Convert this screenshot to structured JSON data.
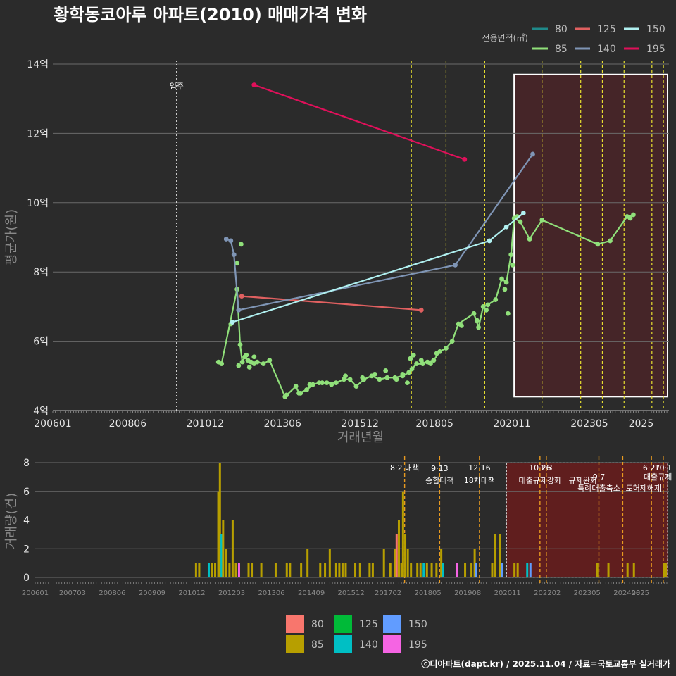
{
  "chart_title": "황학동코아루 아파트(2010) 매매가격 변화",
  "credit": "ⓒ디아파트(dapt.kr) / 2025.11.04 / 자료=국토교통부 실거래가",
  "colors": {
    "bg": "#2b2b2b",
    "grid": "#6b6b6b",
    "s80": "#1f8a8a",
    "s85": "#90e07a",
    "s125": "#e06060",
    "s140": "#7f95b5",
    "s150": "#b0f0f0",
    "s195": "#e0105a",
    "b80": "#f8766d",
    "b85": "#b79f00",
    "b125": "#00ba38",
    "b140": "#00bfc4",
    "b150": "#619cff",
    "b195": "#f564e3",
    "vline": "#e8e030",
    "vline2": "#e89a20",
    "box_fill": "#4a2428",
    "box_fill2": "#6a1c1c"
  },
  "chart_data": [
    {
      "type": "line",
      "title": "황학동코아루 아파트(2010) 매매가격 변화",
      "xlabel": "거래년월",
      "ylabel": "평균가(원)",
      "x_range": [
        2006.0,
        2025.9
      ],
      "ylim": [
        4,
        14
      ],
      "y_ticks": [
        4,
        6,
        8,
        10,
        12,
        14
      ],
      "y_tick_labels": [
        "4억",
        "6억",
        "8억",
        "10억",
        "12억",
        "14억"
      ],
      "x_ticks": [
        2006.0,
        2008.42,
        2010.92,
        2013.42,
        2015.92,
        2018.33,
        2020.83,
        2023.33,
        2025.0
      ],
      "x_tick_labels": [
        "200601",
        "200806",
        "201012",
        "201306",
        "201512",
        "201805",
        "202011",
        "202305",
        "2025"
      ],
      "legend_title": "전용면적(㎡)",
      "occupancy": {
        "x": 2010.0,
        "label": "입주"
      },
      "policy_lines": [
        2017.58,
        2018.7,
        2019.95,
        2021.8,
        2023.05,
        2023.75,
        2024.45,
        2025.35,
        2025.72
      ],
      "highlight_range": [
        2020.9,
        2025.9
      ],
      "highlight_y": [
        4.4,
        13.7
      ],
      "series": [
        {
          "name": "80",
          "color_key": "s80",
          "points": []
        },
        {
          "name": "85",
          "color_key": "s85",
          "line": [
            [
              2011.35,
              5.4
            ],
            [
              2011.45,
              5.35
            ],
            [
              2011.95,
              7.5
            ],
            [
              2012.05,
              5.9
            ],
            [
              2012.12,
              5.4
            ],
            [
              2012.2,
              5.55
            ],
            [
              2012.3,
              5.45
            ],
            [
              2012.4,
              5.4
            ],
            [
              2012.5,
              5.35
            ],
            [
              2012.6,
              5.4
            ],
            [
              2012.8,
              5.35
            ],
            [
              2013.0,
              5.45
            ],
            [
              2013.5,
              4.4
            ],
            [
              2013.85,
              4.7
            ],
            [
              2013.95,
              4.5
            ],
            [
              2014.2,
              4.6
            ],
            [
              2014.4,
              4.75
            ],
            [
              2014.6,
              4.8
            ],
            [
              2014.85,
              4.8
            ],
            [
              2015.15,
              4.8
            ],
            [
              2015.4,
              4.9
            ],
            [
              2015.6,
              4.9
            ],
            [
              2015.8,
              4.7
            ],
            [
              2016.05,
              4.9
            ],
            [
              2016.3,
              5.0
            ],
            [
              2016.55,
              4.9
            ],
            [
              2016.8,
              4.95
            ],
            [
              2017.05,
              4.95
            ],
            [
              2017.3,
              5.0
            ],
            [
              2017.5,
              5.1
            ],
            [
              2017.6,
              5.2
            ],
            [
              2017.75,
              5.35
            ],
            [
              2017.95,
              5.35
            ],
            [
              2018.1,
              5.4
            ],
            [
              2018.3,
              5.45
            ],
            [
              2018.5,
              5.7
            ],
            [
              2018.7,
              5.8
            ],
            [
              2018.9,
              6.0
            ],
            [
              2019.1,
              6.5
            ],
            [
              2019.6,
              6.8
            ],
            [
              2019.75,
              6.4
            ],
            [
              2019.9,
              7.0
            ],
            [
              2020.05,
              7.05
            ],
            [
              2020.3,
              7.2
            ],
            [
              2020.5,
              7.8
            ],
            [
              2020.65,
              7.7
            ],
            [
              2020.8,
              8.5
            ],
            [
              2020.9,
              9.55
            ],
            [
              2021.1,
              9.45
            ],
            [
              2021.4,
              8.95
            ],
            [
              2021.8,
              9.5
            ],
            [
              2023.6,
              8.8
            ],
            [
              2024.0,
              8.9
            ],
            [
              2024.55,
              9.6
            ],
            [
              2024.75,
              9.65
            ]
          ],
          "extra_points": [
            [
              2011.75,
              6.5
            ],
            [
              2011.95,
              8.25
            ],
            [
              2012.08,
              8.8
            ],
            [
              2012.0,
              5.3
            ],
            [
              2012.25,
              5.6
            ],
            [
              2012.35,
              5.25
            ],
            [
              2012.5,
              5.55
            ],
            [
              2013.55,
              4.45
            ],
            [
              2014.0,
              4.5
            ],
            [
              2014.3,
              4.75
            ],
            [
              2014.7,
              4.8
            ],
            [
              2015.0,
              4.75
            ],
            [
              2015.45,
              5.0
            ],
            [
              2016.0,
              4.95
            ],
            [
              2016.4,
              5.05
            ],
            [
              2016.75,
              5.15
            ],
            [
              2017.1,
              4.9
            ],
            [
              2017.3,
              5.05
            ],
            [
              2017.45,
              4.8
            ],
            [
              2017.55,
              5.5
            ],
            [
              2017.65,
              5.6
            ],
            [
              2017.9,
              5.45
            ],
            [
              2018.2,
              5.35
            ],
            [
              2018.4,
              5.65
            ],
            [
              2019.2,
              6.45
            ],
            [
              2019.7,
              6.6
            ],
            [
              2020.0,
              6.9
            ],
            [
              2020.6,
              7.5
            ],
            [
              2020.7,
              6.8
            ],
            [
              2020.85,
              8.2
            ],
            [
              2021.0,
              9.6
            ],
            [
              2024.65,
              9.55
            ]
          ]
        },
        {
          "name": "125",
          "color_key": "s125",
          "line": [
            [
              2012.1,
              7.3
            ],
            [
              2017.9,
              6.9
            ]
          ]
        },
        {
          "name": "140",
          "color_key": "s140",
          "line": [
            [
              2011.6,
              8.95
            ],
            [
              2011.75,
              8.9
            ],
            [
              2011.85,
              8.5
            ],
            [
              2012.0,
              6.9
            ],
            [
              2019.0,
              8.2
            ],
            [
              2021.5,
              11.4
            ]
          ]
        },
        {
          "name": "150",
          "color_key": "s150",
          "line": [
            [
              2011.8,
              6.55
            ],
            [
              2020.1,
              8.9
            ],
            [
              2020.65,
              9.3
            ],
            [
              2021.2,
              9.7
            ]
          ]
        },
        {
          "name": "195",
          "color_key": "s195",
          "line": [
            [
              2012.5,
              13.4
            ],
            [
              2019.3,
              11.25
            ]
          ]
        }
      ]
    },
    {
      "type": "bar",
      "xlabel": "",
      "ylabel": "거래량(건)",
      "x_range": [
        2006.0,
        2025.9
      ],
      "ylim": [
        0,
        8
      ],
      "y_ticks": [
        0,
        2,
        4,
        6,
        8
      ],
      "y_tick_labels": [
        "0",
        "2",
        "4",
        "6",
        "8"
      ],
      "x_tick_labels": [
        "200601",
        "200703",
        "200806",
        "200909",
        "201012",
        "201203",
        "201306",
        "201409",
        "201512",
        "201702",
        "201805",
        "201908",
        "202011",
        "202202",
        "202305",
        "202408",
        "2025"
      ],
      "x_ticks": [
        2006.0,
        2007.17,
        2008.42,
        2009.67,
        2010.92,
        2012.17,
        2013.42,
        2014.67,
        2015.92,
        2017.08,
        2018.33,
        2019.58,
        2020.83,
        2022.08,
        2023.33,
        2024.58,
        2025.0
      ],
      "legend": [
        "80",
        "85",
        "125",
        "140",
        "150",
        "195"
      ],
      "policy_lines": [
        2017.6,
        2018.7,
        2019.95,
        2021.85,
        2022.05,
        2023.7,
        2024.45,
        2025.35,
        2025.72
      ],
      "highlight_range": [
        2020.8,
        2025.9
      ],
      "annotations": [
        {
          "x": 2017.6,
          "row": 0,
          "text": "8·2 대책"
        },
        {
          "x": 2018.7,
          "row": -1,
          "text": "9·13"
        },
        {
          "x": 2018.7,
          "row": 1,
          "text": "종합대책"
        },
        {
          "x": 2019.95,
          "row": 0,
          "text": "12·16"
        },
        {
          "x": 2019.95,
          "row": 1,
          "text": "18차대책"
        },
        {
          "x": 2021.85,
          "row": 0,
          "text": "10·26"
        },
        {
          "x": 2021.85,
          "row": 1,
          "text": "대출규제강화"
        },
        {
          "x": 2022.05,
          "row": 0,
          "text": "1·3"
        },
        {
          "x": 2023.2,
          "row": 1,
          "text": "규제완화"
        },
        {
          "x": 2023.7,
          "row": 2,
          "text": "9·7"
        },
        {
          "x": 2023.7,
          "row": 3,
          "text": "특례대출축소"
        },
        {
          "x": 2025.35,
          "row": 0,
          "text": "6·27"
        },
        {
          "x": 2025.72,
          "row": 0,
          "text": "10·1"
        },
        {
          "x": 2025.1,
          "row": 3,
          "text": "토허제해제"
        },
        {
          "x": 2025.55,
          "row": 2,
          "text": "대출규제"
        }
      ],
      "bars": [
        {
          "x": 2011.05,
          "series": "85",
          "value": 1
        },
        {
          "x": 2011.15,
          "series": "85",
          "value": 1
        },
        {
          "x": 2011.45,
          "series": "140",
          "value": 1
        },
        {
          "x": 2011.55,
          "series": "85",
          "value": 1
        },
        {
          "x": 2011.65,
          "series": "85",
          "value": 1
        },
        {
          "x": 2011.75,
          "series": "85",
          "value": 6
        },
        {
          "x": 2011.8,
          "series": "85",
          "value": 8
        },
        {
          "x": 2011.85,
          "series": "140",
          "value": 3
        },
        {
          "x": 2011.9,
          "series": "85",
          "value": 4
        },
        {
          "x": 2012.0,
          "series": "85",
          "value": 2
        },
        {
          "x": 2012.1,
          "series": "85",
          "value": 1
        },
        {
          "x": 2012.2,
          "series": "85",
          "value": 4
        },
        {
          "x": 2012.3,
          "series": "85",
          "value": 1
        },
        {
          "x": 2012.4,
          "series": "195",
          "value": 1
        },
        {
          "x": 2012.7,
          "series": "85",
          "value": 1
        },
        {
          "x": 2012.8,
          "series": "85",
          "value": 1
        },
        {
          "x": 2013.1,
          "series": "85",
          "value": 1
        },
        {
          "x": 2013.55,
          "series": "85",
          "value": 1
        },
        {
          "x": 2013.9,
          "series": "85",
          "value": 1
        },
        {
          "x": 2014.0,
          "series": "85",
          "value": 1
        },
        {
          "x": 2014.35,
          "series": "85",
          "value": 1
        },
        {
          "x": 2014.55,
          "series": "85",
          "value": 2
        },
        {
          "x": 2014.95,
          "series": "85",
          "value": 1
        },
        {
          "x": 2015.1,
          "series": "85",
          "value": 1
        },
        {
          "x": 2015.25,
          "series": "85",
          "value": 2
        },
        {
          "x": 2015.45,
          "series": "85",
          "value": 1
        },
        {
          "x": 2015.55,
          "series": "85",
          "value": 1
        },
        {
          "x": 2015.65,
          "series": "85",
          "value": 1
        },
        {
          "x": 2015.75,
          "series": "85",
          "value": 1
        },
        {
          "x": 2016.05,
          "series": "85",
          "value": 1
        },
        {
          "x": 2016.2,
          "series": "85",
          "value": 1
        },
        {
          "x": 2016.5,
          "series": "85",
          "value": 1
        },
        {
          "x": 2016.6,
          "series": "85",
          "value": 1
        },
        {
          "x": 2016.95,
          "series": "85",
          "value": 2
        },
        {
          "x": 2017.15,
          "series": "85",
          "value": 1
        },
        {
          "x": 2017.3,
          "series": "85",
          "value": 2
        },
        {
          "x": 2017.35,
          "series": "80",
          "value": 3
        },
        {
          "x": 2017.42,
          "series": "85",
          "value": 4
        },
        {
          "x": 2017.5,
          "series": "85",
          "value": 1
        },
        {
          "x": 2017.55,
          "series": "85",
          "value": 6
        },
        {
          "x": 2017.62,
          "series": "85",
          "value": 3
        },
        {
          "x": 2017.7,
          "series": "85",
          "value": 2
        },
        {
          "x": 2017.8,
          "series": "85",
          "value": 1
        },
        {
          "x": 2018.0,
          "series": "85",
          "value": 1
        },
        {
          "x": 2018.1,
          "series": "85",
          "value": 1
        },
        {
          "x": 2018.2,
          "series": "140",
          "value": 1
        },
        {
          "x": 2018.3,
          "series": "85",
          "value": 1
        },
        {
          "x": 2018.45,
          "series": "85",
          "value": 1
        },
        {
          "x": 2018.6,
          "series": "85",
          "value": 1
        },
        {
          "x": 2018.75,
          "series": "85",
          "value": 2
        },
        {
          "x": 2018.8,
          "series": "140",
          "value": 1
        },
        {
          "x": 2019.25,
          "series": "195",
          "value": 1
        },
        {
          "x": 2019.5,
          "series": "85",
          "value": 1
        },
        {
          "x": 2019.7,
          "series": "85",
          "value": 1
        },
        {
          "x": 2019.8,
          "series": "85",
          "value": 2
        },
        {
          "x": 2019.85,
          "series": "150",
          "value": 1
        },
        {
          "x": 2020.35,
          "series": "85",
          "value": 1
        },
        {
          "x": 2020.45,
          "series": "85",
          "value": 3
        },
        {
          "x": 2020.6,
          "series": "85",
          "value": 3
        },
        {
          "x": 2020.65,
          "series": "150",
          "value": 1
        },
        {
          "x": 2021.05,
          "series": "85",
          "value": 1
        },
        {
          "x": 2021.15,
          "series": "85",
          "value": 1
        },
        {
          "x": 2021.45,
          "series": "140",
          "value": 1
        },
        {
          "x": 2021.55,
          "series": "150",
          "value": 1
        },
        {
          "x": 2023.65,
          "series": "85",
          "value": 1
        },
        {
          "x": 2024.0,
          "series": "85",
          "value": 1
        },
        {
          "x": 2024.6,
          "series": "85",
          "value": 1
        },
        {
          "x": 2024.8,
          "series": "85",
          "value": 1
        },
        {
          "x": 2025.75,
          "series": "85",
          "value": 1
        },
        {
          "x": 2025.8,
          "series": "85",
          "value": 1
        }
      ]
    }
  ]
}
